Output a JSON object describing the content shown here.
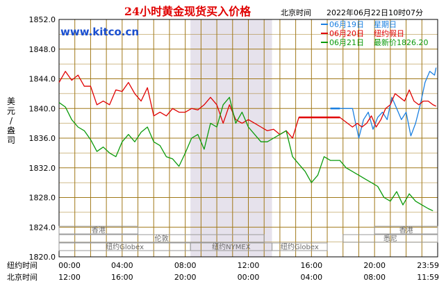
{
  "header": {
    "title": "24小时黄金现货买入价格",
    "timezone_label": "北京时间",
    "timestamp": "2022年06月22日10时07分",
    "website": "www.kitco.cn"
  },
  "legend": [
    {
      "date": "06月19日",
      "label": "星期日",
      "color": "#1a7fe0"
    },
    {
      "date": "06月20日",
      "label": "纽约假日",
      "color": "#e00000"
    },
    {
      "date": "06月21日",
      "label": "最新价1826.20",
      "color": "#0a9a0a"
    }
  ],
  "row_labels": {
    "ny_time": "纽约时间",
    "bj_time": "北京时间"
  },
  "markets": {
    "hongkong": "香港",
    "london": "伦敦",
    "ny_globex": "纽约Globex",
    "ny_nymex": "纽约NYMEX",
    "sydney": "悉尼"
  },
  "colors": {
    "grid": "#a07818",
    "border": "#000000",
    "shade": "#e6e2ec",
    "blue": "#1a7fe0",
    "red": "#e00000",
    "green": "#0a9a0a"
  },
  "chart_data": {
    "type": "line",
    "title": "24小时黄金现货买入价格",
    "ylabel": "美元/盎司",
    "ylim": [
      1820,
      1852
    ],
    "xlim_hours": [
      0,
      24
    ],
    "y_ticks": [
      "1820.0",
      "1824.0",
      "1828.0",
      "1832.0",
      "1836.0",
      "1840.0",
      "1844.0",
      "1848.0",
      "1852.0"
    ],
    "x_ticks_ny": [
      "00:00",
      "04:00",
      "08:00",
      "12:00",
      "16:00",
      "20:00",
      "23:59"
    ],
    "x_ticks_bj": [
      "12:00",
      "16:00",
      "20:00",
      "00:00",
      "04:00",
      "08:00",
      "11:59"
    ],
    "series": [
      {
        "name": "06月19日",
        "color": "#1a7fe0",
        "x": [
          17.8,
          18.6,
          18.8,
          19.0,
          19.3,
          19.6,
          19.9,
          20.2,
          20.5,
          20.8,
          21.1,
          21.4,
          21.7,
          22.0,
          22.3,
          22.6,
          22.9,
          23.2,
          23.5,
          23.8,
          23.9
        ],
        "y": [
          1840.0,
          1840.0,
          1838.0,
          1836.0,
          1838.5,
          1839.5,
          1837.2,
          1838.8,
          1839.5,
          1838.5,
          1841.5,
          1840.0,
          1838.5,
          1839.5,
          1836.3,
          1838.0,
          1840.5,
          1843.5,
          1845.0,
          1844.5,
          1845.5
        ]
      },
      {
        "name": "06月20日",
        "color": "#e00000",
        "x": [
          0.0,
          0.4,
          0.8,
          1.2,
          1.6,
          2.0,
          2.4,
          2.8,
          3.2,
          3.6,
          4.0,
          4.4,
          4.8,
          5.2,
          5.6,
          6.0,
          6.4,
          6.8,
          7.2,
          7.6,
          8.0,
          8.4,
          8.8,
          9.2,
          9.6,
          10.0,
          10.4,
          10.8,
          11.2,
          11.6,
          12.0,
          12.4,
          12.8,
          13.2,
          13.6,
          14.0,
          14.4,
          14.8,
          15.2,
          15.6,
          16.0,
          16.4,
          16.8,
          17.2,
          17.6,
          17.8,
          18.6,
          18.9,
          19.2,
          19.5,
          19.8,
          20.1,
          20.4,
          20.7,
          21.0,
          21.3,
          21.6,
          21.9,
          22.2,
          22.5,
          22.8,
          23.1,
          23.4,
          23.7,
          23.9
        ],
        "y": [
          1843.5,
          1845.0,
          1843.8,
          1844.5,
          1843.0,
          1843.0,
          1840.5,
          1841.0,
          1840.5,
          1842.5,
          1842.3,
          1843.5,
          1842.0,
          1841.0,
          1842.8,
          1839.0,
          1839.5,
          1839.0,
          1840.0,
          1839.5,
          1839.5,
          1840.0,
          1839.8,
          1840.5,
          1841.5,
          1840.5,
          1838.0,
          1840.5,
          1838.5,
          1838.0,
          1838.5,
          1838.0,
          1837.5,
          1837.0,
          1837.2,
          1836.5,
          1837.0,
          1836.0,
          1838.8,
          1838.8,
          1838.8,
          1838.8,
          1838.8,
          1838.8,
          1838.8,
          1838.8,
          1837.5,
          1838.0,
          1837.5,
          1838.0,
          1839.0,
          1837.5,
          1838.5,
          1840.0,
          1840.5,
          1842.0,
          1841.5,
          1841.0,
          1842.5,
          1841.0,
          1840.5,
          1841.0,
          1841.0,
          1840.5,
          1840.3
        ]
      },
      {
        "name": "06月21日",
        "color": "#0a9a0a",
        "x": [
          0.0,
          0.4,
          0.8,
          1.2,
          1.6,
          2.0,
          2.4,
          2.8,
          3.2,
          3.6,
          4.0,
          4.4,
          4.8,
          5.2,
          5.6,
          6.0,
          6.4,
          6.8,
          7.2,
          7.6,
          8.0,
          8.4,
          8.8,
          9.2,
          9.6,
          10.0,
          10.4,
          10.8,
          11.2,
          11.6,
          12.0,
          12.4,
          12.8,
          13.2,
          13.6,
          14.0,
          14.4,
          14.8,
          15.2,
          15.6,
          16.0,
          16.4,
          16.8,
          17.2,
          17.6,
          17.8,
          18.2,
          18.6,
          19.0,
          19.4,
          19.8,
          20.2,
          20.6,
          21.0,
          21.4,
          21.8,
          22.2,
          22.6,
          23.0,
          23.4,
          23.7
        ],
        "y": [
          1840.8,
          1840.2,
          1838.5,
          1837.5,
          1837.0,
          1835.8,
          1834.2,
          1834.8,
          1834.0,
          1833.5,
          1835.5,
          1836.5,
          1835.5,
          1836.8,
          1837.5,
          1835.5,
          1835.0,
          1833.5,
          1833.2,
          1832.2,
          1834.0,
          1836.0,
          1836.5,
          1834.5,
          1838.0,
          1837.5,
          1840.5,
          1841.5,
          1838.0,
          1839.5,
          1837.5,
          1836.5,
          1835.5,
          1835.5,
          1836.0,
          1836.5,
          1837.0,
          1833.5,
          1832.5,
          1831.5,
          1830.0,
          1831.0,
          1833.5,
          1833.0,
          1833.0,
          1833.0,
          1832.0,
          1831.5,
          1831.0,
          1830.5,
          1830.0,
          1829.5,
          1828.0,
          1827.5,
          1828.8,
          1827.0,
          1828.5,
          1827.5,
          1827.0,
          1826.5,
          1826.2
        ]
      }
    ]
  }
}
